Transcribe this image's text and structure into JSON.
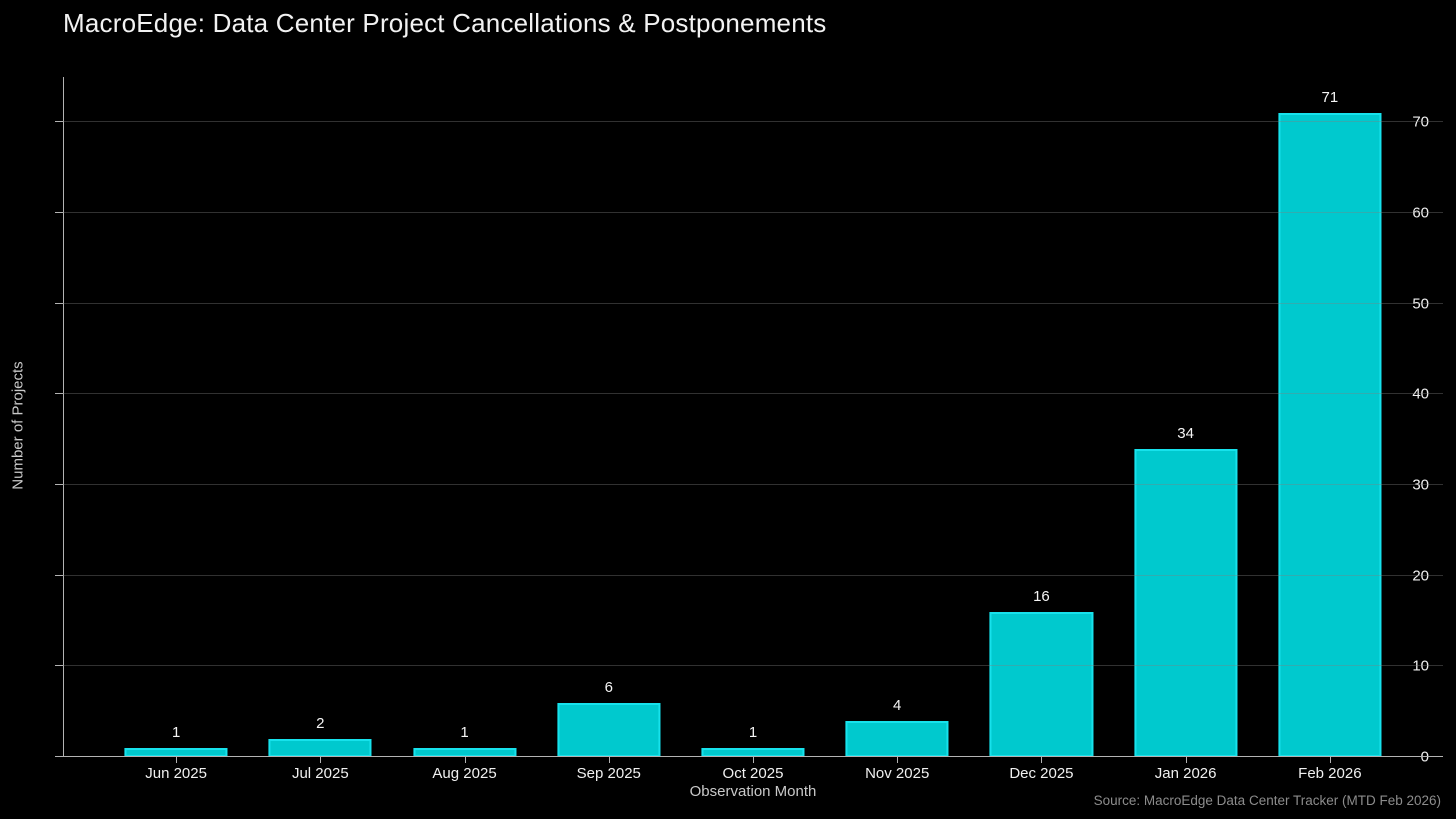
{
  "title": "MacroEdge: Data Center Project Cancellations & Postponements",
  "source_note": "Source: MacroEdge Data Center Tracker (MTD Feb 2026)",
  "colors": {
    "background": "#000000",
    "bar_fill": "#00c9ce",
    "bar_edge": "#17e2ec",
    "title_text": "#f2f2f2",
    "tick_text": "#f0f0f0",
    "axis_label_text": "#c9c9c9",
    "source_text": "#8c8c8c",
    "axis_line": "#b3b3b3",
    "gridline": "rgba(128,128,128,0.38)"
  },
  "chart_data": {
    "type": "bar",
    "title": "MacroEdge: Data Center Project Cancellations & Postponements",
    "categories": [
      "Jun 2025",
      "Jul 2025",
      "Aug 2025",
      "Sep 2025",
      "Oct 2025",
      "Nov 2025",
      "Dec 2025",
      "Jan 2026",
      "Feb 2026"
    ],
    "values": [
      1,
      2,
      1,
      6,
      1,
      4,
      16,
      34,
      71
    ],
    "xlabel": "Observation Month",
    "ylabel": "Number of Projects",
    "ylim": [
      0,
      75
    ],
    "yticks": [
      0,
      10,
      20,
      30,
      40,
      50,
      60,
      70
    ],
    "grid": "horizontal, drawn over bars",
    "legend": "none",
    "bar_value_labels": true,
    "annotation": "Source: MacroEdge Data Center Tracker (MTD Feb 2026)"
  }
}
